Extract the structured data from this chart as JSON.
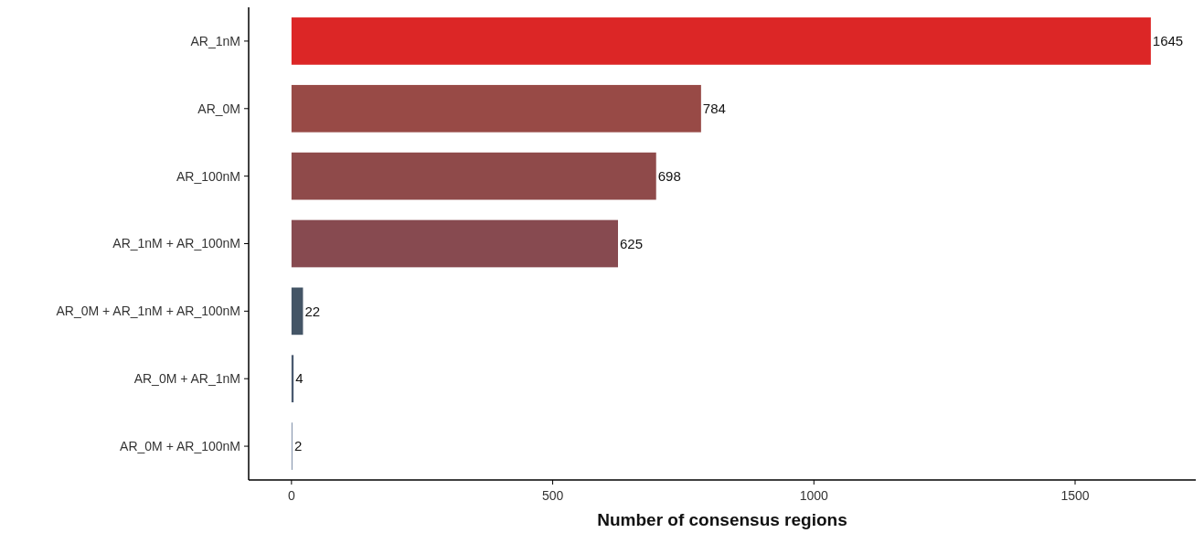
{
  "chart_data": {
    "type": "bar",
    "orientation": "horizontal",
    "xlabel": "Number of consensus regions",
    "categories": [
      "AR_1nM",
      "AR_0M",
      "AR_100nM",
      "AR_1nM + AR_100nM",
      "AR_0M + AR_1nM + AR_100nM",
      "AR_0M + AR_1nM",
      "AR_0M + AR_100nM"
    ],
    "values": [
      1645,
      784,
      698,
      625,
      22,
      4,
      2
    ],
    "colors": [
      "#dc2626",
      "#984a46",
      "#8f4a4a",
      "#874a50",
      "#445566",
      "#4a5a70",
      "#8a9ab0"
    ],
    "xlim": [
      -82,
      1731
    ],
    "xticks": [
      0,
      500,
      1000,
      1500
    ],
    "data_labels": true,
    "grid": false
  }
}
